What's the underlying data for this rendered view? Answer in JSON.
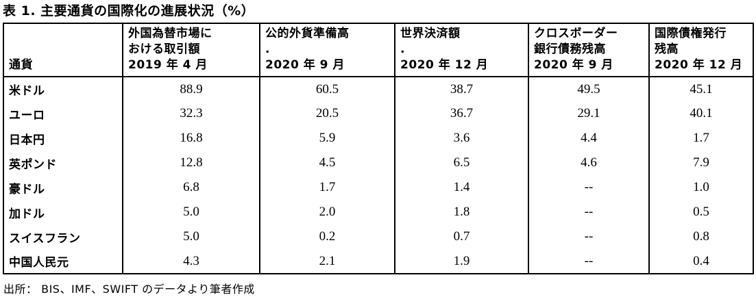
{
  "title": "表 1. 主要通貨の国際化の進展状況（%）",
  "table": {
    "corner_header": "通貨",
    "columns": [
      {
        "lines": [
          "外国為替市場に",
          "おける取引額",
          "2019 年 4 月"
        ]
      },
      {
        "lines": [
          "公的外貨準備高",
          ".",
          "2020 年 9 月"
        ]
      },
      {
        "lines": [
          "世界決済額",
          ".",
          "2020 年 12 月"
        ]
      },
      {
        "lines": [
          "クロスボーダー",
          "銀行債務残高",
          "2020 年 9 月"
        ]
      },
      {
        "lines": [
          "国際債権発行",
          "残高",
          "2020 年 12 月"
        ]
      }
    ],
    "rows": [
      {
        "currency": "米ドル",
        "values": [
          "88.9",
          "60.5",
          "38.7",
          "49.5",
          "45.1"
        ]
      },
      {
        "currency": "ユーロ",
        "values": [
          "32.3",
          "20.5",
          "36.7",
          "29.1",
          "40.1"
        ]
      },
      {
        "currency": "日本円",
        "values": [
          "16.8",
          "5.9",
          "3.6",
          "4.4",
          "1.7"
        ]
      },
      {
        "currency": "英ポンド",
        "values": [
          "12.8",
          "4.5",
          "6.5",
          "4.6",
          "7.9"
        ]
      },
      {
        "currency": "豪ドル",
        "values": [
          "6.8",
          "1.7",
          "1.4",
          "--",
          "1.0"
        ]
      },
      {
        "currency": "加ドル",
        "values": [
          "5.0",
          "2.0",
          "1.8",
          "--",
          "0.5"
        ]
      },
      {
        "currency": "スイスフラン",
        "values": [
          "5.0",
          "0.2",
          "0.7",
          "--",
          "0.8"
        ]
      },
      {
        "currency": "中国人民元",
        "values": [
          "4.3",
          "2.1",
          "1.9",
          "--",
          "0.4"
        ]
      }
    ]
  },
  "source_note": "出所：  BIS、IMF、SWIFT のデータより筆者作成",
  "colors": {
    "text": "#000000",
    "background": "#ffffff",
    "border": "#000000"
  }
}
